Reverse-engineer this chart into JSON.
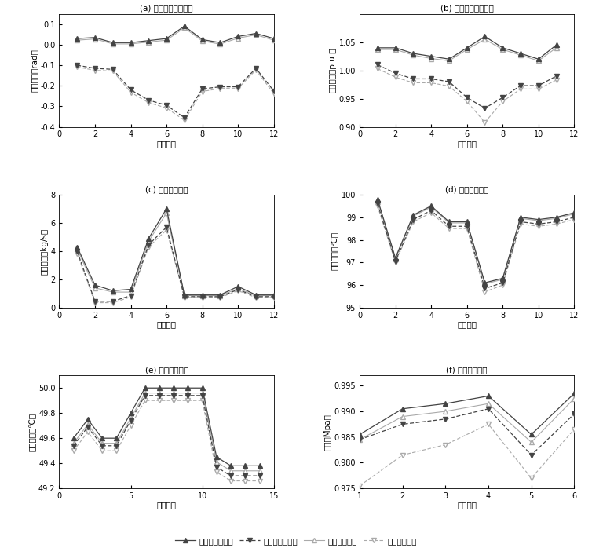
{
  "panel_a": {
    "title": "(a) 电网节点电压相角",
    "xlabel": "节点编号",
    "ylabel": "电压相角（rad）",
    "xlim": [
      0,
      12
    ],
    "ylim": [
      -0.4,
      0.15
    ],
    "yticks": [
      -0.4,
      -0.3,
      -0.2,
      -0.1,
      0.0,
      0.1
    ],
    "xticks": [
      0,
      2,
      4,
      6,
      8,
      10,
      12
    ],
    "upper_x": [
      1,
      2,
      3,
      4,
      5,
      6,
      7,
      8,
      9,
      10,
      11,
      12
    ],
    "upper_mc": [
      0.03,
      0.035,
      0.01,
      0.01,
      0.02,
      0.03,
      0.09,
      0.025,
      0.01,
      0.04,
      0.055,
      0.03
    ],
    "upper_bw": [
      0.022,
      0.028,
      0.004,
      0.004,
      0.013,
      0.022,
      0.082,
      0.018,
      0.003,
      0.032,
      0.048,
      0.022
    ],
    "lower_mc": [
      -0.1,
      -0.115,
      -0.12,
      -0.22,
      -0.27,
      -0.295,
      -0.355,
      -0.215,
      -0.205,
      -0.205,
      -0.115,
      -0.225
    ],
    "lower_bw": [
      -0.108,
      -0.125,
      -0.128,
      -0.232,
      -0.282,
      -0.308,
      -0.368,
      -0.228,
      -0.213,
      -0.213,
      -0.123,
      -0.238
    ]
  },
  "panel_b": {
    "title": "(b) 电网节点电压幅值",
    "xlabel": "节点编号",
    "ylabel": "电压幅值（p.u.）",
    "xlim": [
      0,
      12
    ],
    "ylim": [
      0.9,
      1.1
    ],
    "yticks": [
      0.9,
      0.95,
      1.0,
      1.05
    ],
    "xticks": [
      0,
      2,
      4,
      6,
      8,
      10,
      12
    ],
    "upper_x": [
      1,
      2,
      3,
      4,
      5,
      6,
      7,
      8,
      9,
      10,
      11
    ],
    "upper_mc": [
      1.04,
      1.04,
      1.03,
      1.025,
      1.02,
      1.04,
      1.06,
      1.04,
      1.03,
      1.02,
      1.045
    ],
    "upper_bw": [
      1.037,
      1.037,
      1.027,
      1.021,
      1.017,
      1.037,
      1.055,
      1.037,
      1.027,
      1.017,
      1.04
    ],
    "lower_mc": [
      1.01,
      0.995,
      0.985,
      0.985,
      0.98,
      0.952,
      0.933,
      0.952,
      0.973,
      0.973,
      0.99
    ],
    "lower_bw": [
      1.003,
      0.988,
      0.978,
      0.978,
      0.972,
      0.945,
      0.908,
      0.945,
      0.967,
      0.967,
      0.983
    ]
  },
  "panel_c": {
    "title": "(c) 热网管道流量",
    "xlabel": "管道编号",
    "ylabel": "质量流量（kg/s）",
    "xlim": [
      0,
      12
    ],
    "ylim": [
      0,
      8
    ],
    "yticks": [
      0,
      2,
      4,
      6,
      8
    ],
    "xticks": [
      0,
      2,
      4,
      6,
      8,
      10,
      12
    ],
    "upper_x": [
      1,
      2,
      3,
      4,
      5,
      6,
      7,
      8,
      9,
      10,
      11,
      12
    ],
    "upper_mc": [
      4.3,
      1.6,
      1.2,
      1.3,
      4.9,
      7.0,
      0.9,
      0.9,
      0.9,
      1.5,
      0.9,
      0.9
    ],
    "upper_bw": [
      4.15,
      1.4,
      1.1,
      1.1,
      4.7,
      6.7,
      0.85,
      0.85,
      0.85,
      1.35,
      0.85,
      0.85
    ],
    "lower_mc": [
      4.0,
      0.45,
      0.45,
      0.85,
      4.45,
      5.7,
      0.78,
      0.78,
      0.78,
      1.28,
      0.78,
      0.78
    ],
    "lower_bw": [
      3.85,
      0.35,
      0.35,
      0.75,
      4.3,
      5.5,
      0.72,
      0.72,
      0.72,
      1.2,
      0.72,
      0.72
    ]
  },
  "panel_d": {
    "title": "(d) 热网供热温度",
    "xlabel": "节点编号",
    "ylabel": "供热温度（℃）",
    "xlim": [
      0,
      12
    ],
    "ylim": [
      95,
      100
    ],
    "yticks": [
      95,
      96,
      97,
      98,
      99,
      100
    ],
    "xticks": [
      0,
      2,
      4,
      6,
      8,
      10,
      12
    ],
    "upper_x": [
      1,
      2,
      3,
      4,
      5,
      6,
      7,
      8,
      9,
      10,
      11,
      12
    ],
    "upper_mc": [
      99.8,
      97.2,
      99.1,
      99.5,
      98.8,
      98.8,
      96.1,
      96.3,
      99.0,
      98.9,
      99.0,
      99.2
    ],
    "upper_bw": [
      99.75,
      97.15,
      99.05,
      99.45,
      98.75,
      98.75,
      96.05,
      96.25,
      98.95,
      98.85,
      98.95,
      99.15
    ],
    "lower_mc": [
      99.6,
      97.05,
      98.9,
      99.3,
      98.6,
      98.6,
      95.85,
      96.1,
      98.8,
      98.7,
      98.8,
      99.0
    ],
    "lower_bw": [
      99.5,
      97.0,
      98.8,
      99.2,
      98.5,
      98.5,
      95.7,
      96.0,
      98.7,
      98.6,
      98.7,
      98.9
    ]
  },
  "panel_e": {
    "title": "(e) 热网回热温度",
    "xlabel": "节点编号",
    "ylabel": "回热温度（℃）",
    "xlim": [
      0,
      15
    ],
    "ylim": [
      49.2,
      50.1
    ],
    "yticks": [
      49.2,
      49.4,
      49.6,
      49.8,
      50.0
    ],
    "xticks": [
      0,
      5,
      10,
      15
    ],
    "upper_x": [
      1,
      2,
      3,
      4,
      5,
      6,
      7,
      8,
      9,
      10,
      11,
      12,
      13,
      14
    ],
    "upper_mc": [
      49.6,
      49.75,
      49.6,
      49.6,
      49.8,
      50.0,
      50.0,
      50.0,
      50.0,
      50.0,
      49.45,
      49.38,
      49.38,
      49.38
    ],
    "upper_bw": [
      49.56,
      49.71,
      49.56,
      49.56,
      49.76,
      49.96,
      49.96,
      49.96,
      49.96,
      49.96,
      49.41,
      49.34,
      49.34,
      49.34
    ],
    "lower_mc": [
      49.54,
      49.69,
      49.54,
      49.54,
      49.74,
      49.94,
      49.94,
      49.94,
      49.94,
      49.94,
      49.37,
      49.3,
      49.3,
      49.3
    ],
    "lower_bw": [
      49.5,
      49.65,
      49.5,
      49.5,
      49.7,
      49.9,
      49.9,
      49.9,
      49.9,
      49.9,
      49.33,
      49.26,
      49.26,
      49.26
    ]
  },
  "panel_f": {
    "title": "(f) 氢网节点气压",
    "xlabel": "节点编号",
    "ylabel": "管压（Mpa）",
    "xlim": [
      1,
      6
    ],
    "ylim": [
      0.975,
      0.997
    ],
    "yticks": [
      0.975,
      0.98,
      0.985,
      0.99,
      0.995
    ],
    "xticks": [
      1,
      2,
      3,
      4,
      5,
      6
    ],
    "upper_x": [
      1,
      2,
      3,
      4,
      5,
      6
    ],
    "upper_mc": [
      0.9855,
      0.9905,
      0.9915,
      0.993,
      0.9855,
      0.9935
    ],
    "upper_bw": [
      0.9845,
      0.989,
      0.99,
      0.9915,
      0.984,
      0.9925
    ],
    "lower_mc": [
      0.9845,
      0.9875,
      0.9885,
      0.9905,
      0.9815,
      0.9895
    ],
    "lower_bw": [
      0.9755,
      0.9815,
      0.9835,
      0.9875,
      0.977,
      0.9865
    ]
  },
  "legend": {
    "mc_upper": "蒙特卡罗法上界",
    "mc_lower": "蒙特卡罗法下界",
    "bw_upper": "本文方法上界",
    "bw_lower": "本文方法下界"
  },
  "colors": {
    "mc_dark": "#444444",
    "mc_light": "#888888",
    "bw_dark": "#666666",
    "bw_light": "#aaaaaa"
  }
}
